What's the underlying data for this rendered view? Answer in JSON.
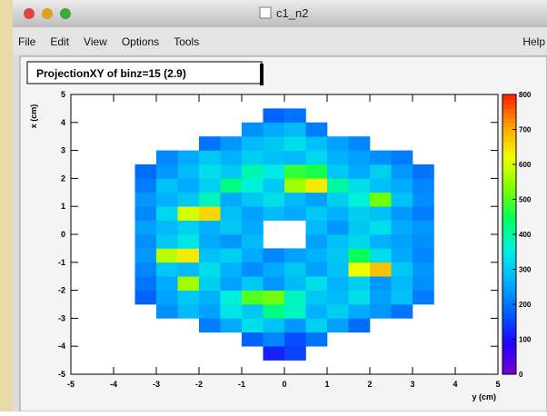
{
  "window": {
    "title": "c1_n2",
    "menu": [
      "File",
      "Edit",
      "View",
      "Options",
      "Tools"
    ],
    "help": "Help"
  },
  "chart_data": {
    "type": "heatmap",
    "title": "ProjectionXY of binz=15 (2.9)",
    "xlabel": "y (cm)",
    "ylabel": "x (cm)",
    "xlim": [
      -5,
      5
    ],
    "ylim": [
      -5,
      5
    ],
    "zlim": [
      0,
      800
    ],
    "xticks": [
      -5,
      -4,
      -3,
      -2,
      -1,
      0,
      1,
      2,
      3,
      4,
      5
    ],
    "yticks": [
      -5,
      -4,
      -3,
      -2,
      -1,
      0,
      1,
      2,
      3,
      4,
      5
    ],
    "zticks": [
      0,
      100,
      200,
      300,
      400,
      500,
      600,
      700,
      800
    ],
    "xbins": [
      -5,
      -4.5,
      -4,
      -3.5,
      -3,
      -2.5,
      -2,
      -1.5,
      -1,
      -0.5,
      0,
      0.5,
      1,
      1.5,
      2,
      2.5,
      3,
      3.5,
      4,
      4.5,
      5
    ],
    "ybins": [
      -5,
      -4.5,
      -4,
      -3.5,
      -3,
      -2.5,
      -2,
      -1.5,
      -1,
      -0.5,
      0,
      0.5,
      1,
      1.5,
      2,
      2.5,
      3,
      3.5,
      4,
      4.5,
      5
    ],
    "colorscale": [
      "#7a00c8",
      "#2000ff",
      "#0060ff",
      "#00b0ff",
      "#00f0e0",
      "#00ff60",
      "#80ff00",
      "#f0ff00",
      "#ffa000",
      "#ff2000"
    ],
    "z": [
      [
        0,
        0,
        0,
        0,
        0,
        0,
        0,
        0,
        0,
        0,
        0,
        0,
        0,
        0,
        0,
        0,
        0,
        0,
        0,
        0
      ],
      [
        0,
        0,
        0,
        0,
        0,
        0,
        0,
        0,
        0,
        120,
        150,
        0,
        0,
        0,
        0,
        0,
        0,
        0,
        0,
        0
      ],
      [
        0,
        0,
        0,
        0,
        0,
        0,
        0,
        0,
        180,
        220,
        160,
        200,
        0,
        0,
        0,
        0,
        0,
        0,
        0,
        0
      ],
      [
        0,
        0,
        0,
        0,
        0,
        0,
        210,
        260,
        330,
        290,
        240,
        310,
        250,
        190,
        0,
        0,
        0,
        0,
        0,
        0
      ],
      [
        0,
        0,
        0,
        0,
        230,
        280,
        250,
        340,
        300,
        420,
        380,
        270,
        310,
        260,
        240,
        200,
        0,
        0,
        0,
        0
      ],
      [
        0,
        0,
        0,
        180,
        250,
        300,
        270,
        360,
        500,
        520,
        380,
        300,
        280,
        330,
        250,
        290,
        210,
        0,
        0,
        0
      ],
      [
        0,
        0,
        0,
        200,
        260,
        560,
        310,
        250,
        300,
        240,
        280,
        330,
        270,
        310,
        240,
        280,
        230,
        0,
        0,
        0
      ],
      [
        0,
        0,
        0,
        220,
        300,
        280,
        330,
        270,
        230,
        260,
        300,
        250,
        290,
        620,
        680,
        300,
        240,
        0,
        0,
        0
      ],
      [
        0,
        0,
        0,
        240,
        580,
        640,
        290,
        310,
        260,
        220,
        250,
        270,
        300,
        450,
        330,
        260,
        220,
        0,
        0,
        0
      ],
      [
        0,
        0,
        0,
        230,
        300,
        340,
        260,
        240,
        280,
        0,
        0,
        250,
        290,
        320,
        270,
        250,
        230,
        0,
        0,
        0
      ],
      [
        0,
        0,
        0,
        250,
        280,
        310,
        270,
        300,
        260,
        0,
        0,
        280,
        240,
        300,
        330,
        260,
        240,
        0,
        0,
        0
      ],
      [
        0,
        0,
        0,
        220,
        320,
        600,
        660,
        290,
        250,
        280,
        260,
        300,
        270,
        310,
        290,
        240,
        210,
        0,
        0,
        0
      ],
      [
        0,
        0,
        0,
        240,
        270,
        300,
        380,
        260,
        300,
        330,
        280,
        250,
        310,
        360,
        520,
        290,
        230,
        0,
        0,
        0
      ],
      [
        0,
        0,
        0,
        210,
        290,
        260,
        310,
        420,
        360,
        300,
        560,
        640,
        400,
        330,
        290,
        260,
        220,
        0,
        0,
        0
      ],
      [
        0,
        0,
        0,
        190,
        240,
        280,
        330,
        300,
        390,
        350,
        480,
        460,
        300,
        260,
        310,
        240,
        200,
        0,
        0,
        0
      ],
      [
        0,
        0,
        0,
        0,
        220,
        260,
        300,
        270,
        310,
        290,
        280,
        320,
        270,
        250,
        230,
        210,
        0,
        0,
        0,
        0
      ],
      [
        0,
        0,
        0,
        0,
        0,
        0,
        200,
        240,
        280,
        300,
        330,
        290,
        250,
        220,
        0,
        0,
        0,
        0,
        0,
        0
      ],
      [
        0,
        0,
        0,
        0,
        0,
        0,
        0,
        0,
        230,
        260,
        280,
        210,
        0,
        0,
        0,
        0,
        0,
        0,
        0,
        0
      ],
      [
        0,
        0,
        0,
        0,
        0,
        0,
        0,
        0,
        0,
        180,
        200,
        0,
        0,
        0,
        0,
        0,
        0,
        0,
        0,
        0
      ],
      [
        0,
        0,
        0,
        0,
        0,
        0,
        0,
        0,
        0,
        0,
        0,
        0,
        0,
        0,
        0,
        0,
        0,
        0,
        0,
        0
      ]
    ]
  }
}
